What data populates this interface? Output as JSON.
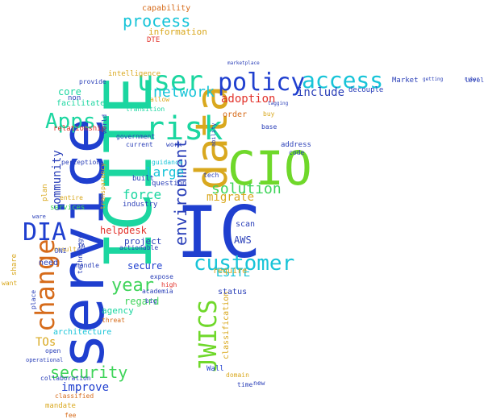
{
  "palette": {
    "teal": "#1bd6a0",
    "blue": "#1f3fcf",
    "cyan": "#17c4d8",
    "lime": "#6fd82a",
    "orange": "#d66b1a",
    "gold": "#d9a81e",
    "red": "#e2322b",
    "green": "#3fd45a",
    "navy": "#2a3fb8"
  },
  "words": {
    "ICITE": "ICITE",
    "service": "service",
    "IC": "IC",
    "CIO": "CIO",
    "data": "data",
    "policy": "policy",
    "access": "access",
    "user": "user",
    "risk": "risk",
    "change": "change",
    "customer": "customer",
    "environment": "environment",
    "JWICS": "JWICS",
    "DIA": "DIA",
    "Apps": "Apps",
    "security": "security",
    "process": "process",
    "network": "network",
    "solution": "solution",
    "year": "year",
    "community": "community",
    "migrate": "migrate",
    "force": "force",
    "large": "large",
    "improve": "improve",
    "ESITE": "ESITE",
    "adoption": "adoption",
    "include": "include",
    "core": "core",
    "TOs": "TOs",
    "helpdesk": "helpdesk",
    "regard": "regard",
    "secure": "secure",
    "AWS": "AWS",
    "agency": "agency",
    "classification": "classification",
    "information": "information",
    "capability": "capability",
    "project": "project",
    "architecture": "architecture",
    "intelligence": "intelligence",
    "need": "need",
    "facilitate": "facilitate",
    "relationship": "relationship",
    "DTE": "DTE",
    "decouple": "decouple",
    "Market": "Market",
    "address": "address",
    "order": "order",
    "status": "status",
    "require": "require",
    "code": "code",
    "scan": "scan",
    "question": "question",
    "industry": "industry",
    "built": "built",
    "guidance": "guidance",
    "government": "government",
    "current": "current",
    "work": "work",
    "transition": "transition",
    "allow": "allow",
    "non": "non",
    "provide": "provide",
    "world": "world",
    "technology": "technology",
    "transparency": "transparency",
    "services": "services",
    "entire": "entire",
    "plan": "plan",
    "perception": "perception",
    "result": "result",
    "share": "share",
    "want": "want",
    "place": "place",
    "threat": "threat",
    "open": "open",
    "collaboration": "collaboration",
    "classified": "classified",
    "mandate": "mandate",
    "fee": "fee",
    "high": "high",
    "big": "big",
    "academia": "academia",
    "expose": "expose",
    "actionable": "actionable",
    "handle": "handle",
    "DNI": "DNI",
    "IA": "IA",
    "Wall": "Wall",
    "domain": "domain",
    "time": "time",
    "new": "new",
    "level": "level",
    "base": "base",
    "buy": "buy",
    "tech": "tech",
    "ability": "ability",
    "operational": "operational",
    "ware": "ware",
    "tagging": "tagging",
    "marketplace": "marketplace",
    "getting": "getting",
    "cyber": "cyber"
  }
}
